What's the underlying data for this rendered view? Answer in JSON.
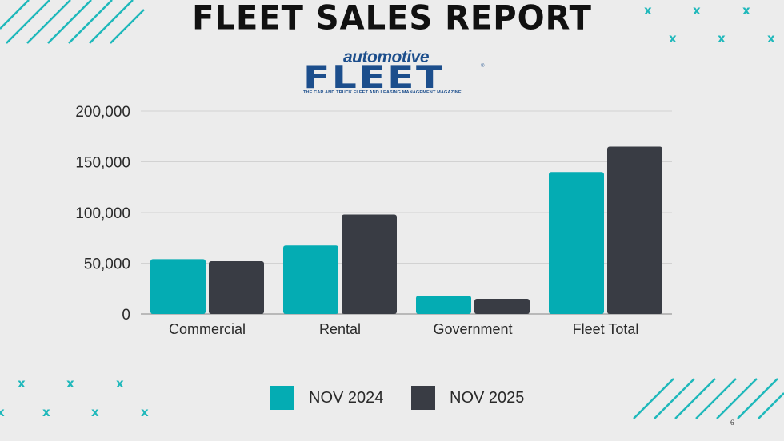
{
  "slide": {
    "title": "FLEET SALES REPORT",
    "logo": {
      "top_text": "automotive",
      "main_text": "FLEET",
      "registered_mark": "®",
      "subtitle": "THE CAR AND TRUCK FLEET AND LEASING MANAGEMENT MAGAZINE"
    },
    "page_number": "6"
  },
  "colors": {
    "background": "#ececec",
    "series_2024": "#04acb3",
    "series_2025": "#393c44",
    "accent": "#1fb8bb",
    "logo_blue": "#1c4e8c"
  },
  "chart_data": {
    "type": "bar",
    "categories": [
      "Commercial",
      "Rental",
      "Government",
      "Fleet Total"
    ],
    "series": [
      {
        "name": "NOV 2024",
        "values": [
          54000,
          67500,
          18000,
          140000
        ]
      },
      {
        "name": "NOV 2025",
        "values": [
          52000,
          98000,
          15000,
          165000
        ]
      }
    ],
    "y_ticks": [
      "0",
      "50,000",
      "100,000",
      "150,000",
      "200,000"
    ],
    "ylim": [
      0,
      200000
    ],
    "grid": true,
    "legend": "bottom-center"
  }
}
